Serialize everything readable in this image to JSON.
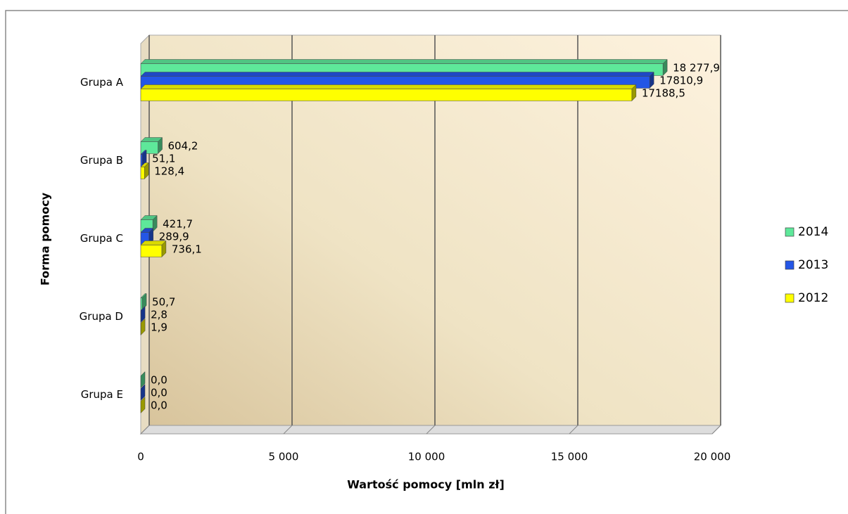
{
  "chart_data": {
    "type": "bar3d_horizontal",
    "xlabel": "Wartość pomocy [mln zł]",
    "ylabel": "Forma pomocy",
    "categories": [
      "Grupa A",
      "Grupa B",
      "Grupa C",
      "Grupa D",
      "Grupa E"
    ],
    "series": [
      {
        "name": "2014",
        "color": "#5ee89a",
        "values": [
          18277.9,
          604.2,
          421.7,
          50.7,
          0.0
        ],
        "value_labels": [
          "18 277,9",
          "604,2",
          "421,7",
          "50,7",
          "0,0"
        ]
      },
      {
        "name": "2013",
        "color": "#2456e6",
        "values": [
          17810.9,
          51.1,
          289.9,
          2.8,
          0.0
        ],
        "value_labels": [
          "17810,9",
          "51,1",
          "289,9",
          "2,8",
          "0,0"
        ]
      },
      {
        "name": "2012",
        "color": "#ffff00",
        "values": [
          17188.5,
          128.4,
          736.1,
          1.9,
          0.0
        ],
        "value_labels": [
          "17188,5",
          "128,4",
          "736,1",
          "1,9",
          "0,0"
        ]
      }
    ],
    "xlim": [
      0,
      20000
    ],
    "xticks": [
      0,
      {
        "value": 5000,
        "label": "5 000"
      },
      {
        "value": 10000,
        "label": "10 000"
      },
      {
        "value": 15000,
        "label": "15 000"
      },
      {
        "value": 20000,
        "label": "20 000"
      }
    ],
    "grid": true,
    "legend": "right"
  }
}
